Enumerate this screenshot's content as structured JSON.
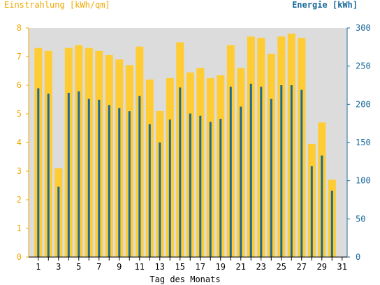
{
  "chart_data": {
    "type": "bar",
    "left_axis_title": "Einstrahlung [kWh/qm]",
    "right_axis_title": "Energie [kWh]",
    "xlabel": "Tag des Monats",
    "left_ylim": [
      0,
      8
    ],
    "right_ylim": [
      0,
      300
    ],
    "left_ticks": [
      "0",
      "1",
      "2",
      "3",
      "4",
      "5",
      "6",
      "7",
      "8"
    ],
    "right_ticks": [
      "0",
      "50",
      "100",
      "150",
      "200",
      "250",
      "300"
    ],
    "x_tick_labels": [
      "1",
      "3",
      "5",
      "7",
      "9",
      "11",
      "13",
      "15",
      "17",
      "19",
      "21",
      "23",
      "25",
      "27",
      "29",
      "31"
    ],
    "grid": false,
    "colors": {
      "irradiation": "#ffcc33",
      "energy": "#1a6a9a",
      "left_axis": "#f0a800",
      "right_axis": "#1a6a9a",
      "plot_background": "#dcdcdc"
    },
    "categories": [
      1,
      2,
      3,
      4,
      5,
      6,
      7,
      8,
      9,
      10,
      11,
      12,
      13,
      14,
      15,
      16,
      17,
      18,
      19,
      20,
      21,
      22,
      23,
      24,
      25,
      26,
      27,
      28,
      29,
      30,
      31
    ],
    "series": [
      {
        "name": "Einstrahlung [kWh/qm]",
        "axis": "left",
        "values": [
          7.3,
          7.2,
          3.1,
          7.3,
          7.4,
          7.3,
          7.2,
          7.05,
          6.9,
          6.7,
          7.35,
          6.2,
          5.1,
          6.25,
          7.5,
          6.45,
          6.6,
          6.25,
          6.35,
          7.4,
          6.6,
          7.7,
          7.65,
          7.1,
          7.7,
          7.8,
          7.65,
          3.95,
          4.7,
          2.7,
          null
        ]
      },
      {
        "name": "Energie [kWh]",
        "axis": "right",
        "values": [
          221,
          214,
          92,
          215,
          217,
          207,
          206,
          199,
          195,
          191,
          211,
          174,
          150,
          180,
          222,
          188,
          185,
          177,
          181,
          223,
          197,
          227,
          223,
          207,
          225,
          225,
          219,
          119,
          133,
          87,
          null
        ]
      }
    ]
  }
}
